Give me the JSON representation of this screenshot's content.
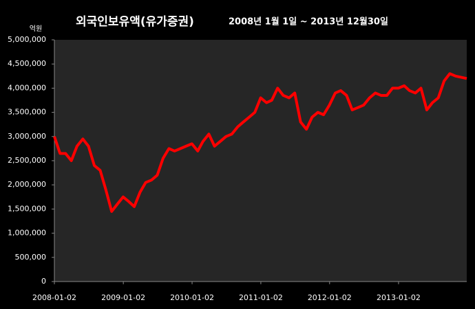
{
  "chart_data": {
    "type": "line",
    "title": "외국인보유액(유가증권)",
    "subtitle": "2008년 1월 1일 ~ 2013년 12월30일",
    "y_label": "억원",
    "x": [
      "2008-01-02",
      "2008-02-01",
      "2008-03-01",
      "2008-04-01",
      "2008-05-01",
      "2008-06-01",
      "2008-07-01",
      "2008-08-01",
      "2008-09-01",
      "2008-10-01",
      "2008-11-01",
      "2008-12-01",
      "2009-01-01",
      "2009-02-01",
      "2009-03-01",
      "2009-04-01",
      "2009-05-01",
      "2009-06-01",
      "2009-07-01",
      "2009-08-01",
      "2009-09-01",
      "2009-10-01",
      "2009-11-01",
      "2009-12-01",
      "2010-01-01",
      "2010-02-01",
      "2010-03-01",
      "2010-04-01",
      "2010-05-01",
      "2010-06-01",
      "2010-07-01",
      "2010-08-01",
      "2010-09-01",
      "2010-10-01",
      "2010-11-01",
      "2010-12-01",
      "2011-01-01",
      "2011-02-01",
      "2011-03-01",
      "2011-04-01",
      "2011-05-01",
      "2011-06-01",
      "2011-07-01",
      "2011-08-01",
      "2011-09-01",
      "2011-10-01",
      "2011-11-01",
      "2011-12-01",
      "2012-01-01",
      "2012-02-01",
      "2012-03-01",
      "2012-04-01",
      "2012-05-01",
      "2012-06-01",
      "2012-07-01",
      "2012-08-01",
      "2012-09-01",
      "2012-10-01",
      "2012-11-01",
      "2012-12-01",
      "2013-01-01",
      "2013-02-01",
      "2013-03-01",
      "2013-04-01",
      "2013-05-01",
      "2013-06-01",
      "2013-07-01",
      "2013-08-01",
      "2013-09-01",
      "2013-10-01",
      "2013-11-01",
      "2013-12-30"
    ],
    "series": [
      {
        "name": "외국인보유액",
        "color": "#ff0000",
        "values": [
          3000000,
          2650000,
          2650000,
          2500000,
          2800000,
          2950000,
          2800000,
          2400000,
          2300000,
          1900000,
          1450000,
          1600000,
          1750000,
          1650000,
          1550000,
          1850000,
          2050000,
          2100000,
          2200000,
          2550000,
          2750000,
          2700000,
          2750000,
          2800000,
          2850000,
          2700000,
          2900000,
          3050000,
          2800000,
          2900000,
          3000000,
          3050000,
          3200000,
          3300000,
          3400000,
          3500000,
          3800000,
          3700000,
          3750000,
          4000000,
          3850000,
          3800000,
          3900000,
          3300000,
          3150000,
          3400000,
          3500000,
          3450000,
          3650000,
          3900000,
          3950000,
          3850000,
          3550000,
          3600000,
          3650000,
          3800000,
          3900000,
          3850000,
          3850000,
          4000000,
          4000000,
          4050000,
          3950000,
          3900000,
          4000000,
          3550000,
          3700000,
          3800000,
          4150000,
          4300000,
          4250000,
          4200000
        ]
      }
    ],
    "xlim": [
      "2008-01-02",
      "2013-12-30"
    ],
    "xticks": [
      "2008-01-02",
      "2009-01-02",
      "2010-01-02",
      "2011-01-02",
      "2012-01-02",
      "2013-01-02"
    ],
    "ylim": [
      0,
      5000000
    ],
    "yticks": [
      0,
      {
        "value": 500000,
        "label": "500,000"
      },
      {
        "value": 1000000,
        "label": "1,000,000"
      },
      {
        "value": 1500000,
        "label": "1,500,000"
      },
      {
        "value": 2000000,
        "label": "2,000,000"
      },
      {
        "value": 2500000,
        "label": "2,500,000"
      },
      {
        "value": 3000000,
        "label": "3,000,000"
      },
      {
        "value": 3500000,
        "label": "3,500,000"
      },
      {
        "value": 4000000,
        "label": "4,000,000"
      },
      {
        "value": 4500000,
        "label": "4,500,000"
      },
      {
        "value": 5000000,
        "label": "5,000,000"
      }
    ],
    "grid": false,
    "plot_background": "#262626"
  }
}
